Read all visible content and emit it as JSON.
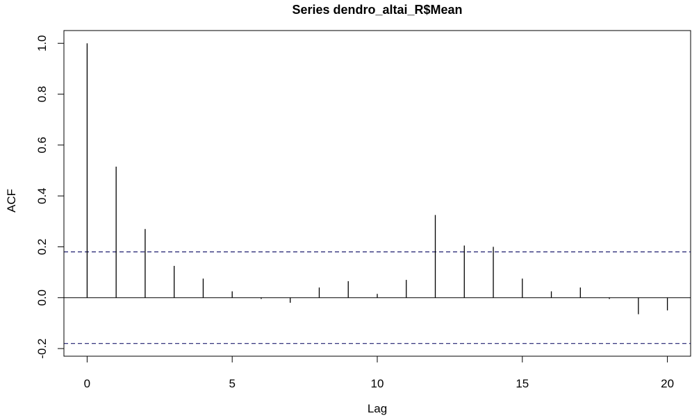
{
  "chart_data": {
    "type": "bar",
    "title": "Series  dendro_altai_R$Mean",
    "xlabel": "Lag",
    "ylabel": "ACF",
    "xlim": [
      -0.8,
      20.8
    ],
    "ylim": [
      -0.23,
      1.05
    ],
    "x_ticks": [
      0,
      5,
      10,
      15,
      20
    ],
    "x_tick_labels": [
      "0",
      "5",
      "10",
      "15",
      "20"
    ],
    "y_ticks": [
      -0.2,
      0.0,
      0.2,
      0.4,
      0.6,
      0.8,
      1.0
    ],
    "y_tick_labels": [
      "-0.2",
      "0.0",
      "0.2",
      "0.4",
      "0.6",
      "0.8",
      "1.0"
    ],
    "lags": [
      0,
      1,
      2,
      3,
      4,
      5,
      6,
      7,
      8,
      9,
      10,
      11,
      12,
      13,
      14,
      15,
      16,
      17,
      18,
      19,
      20
    ],
    "values": [
      1.0,
      0.515,
      0.27,
      0.125,
      0.075,
      0.025,
      -0.005,
      -0.02,
      0.04,
      0.065,
      0.015,
      0.07,
      0.325,
      0.205,
      0.2,
      0.075,
      0.025,
      0.04,
      -0.005,
      -0.065,
      -0.05
    ],
    "confidence_bounds": [
      0.18,
      -0.18
    ],
    "grid": false,
    "colors": {
      "spikes": "#000000",
      "confidence_line": "#1c1c6e",
      "frame": "#000000"
    }
  }
}
